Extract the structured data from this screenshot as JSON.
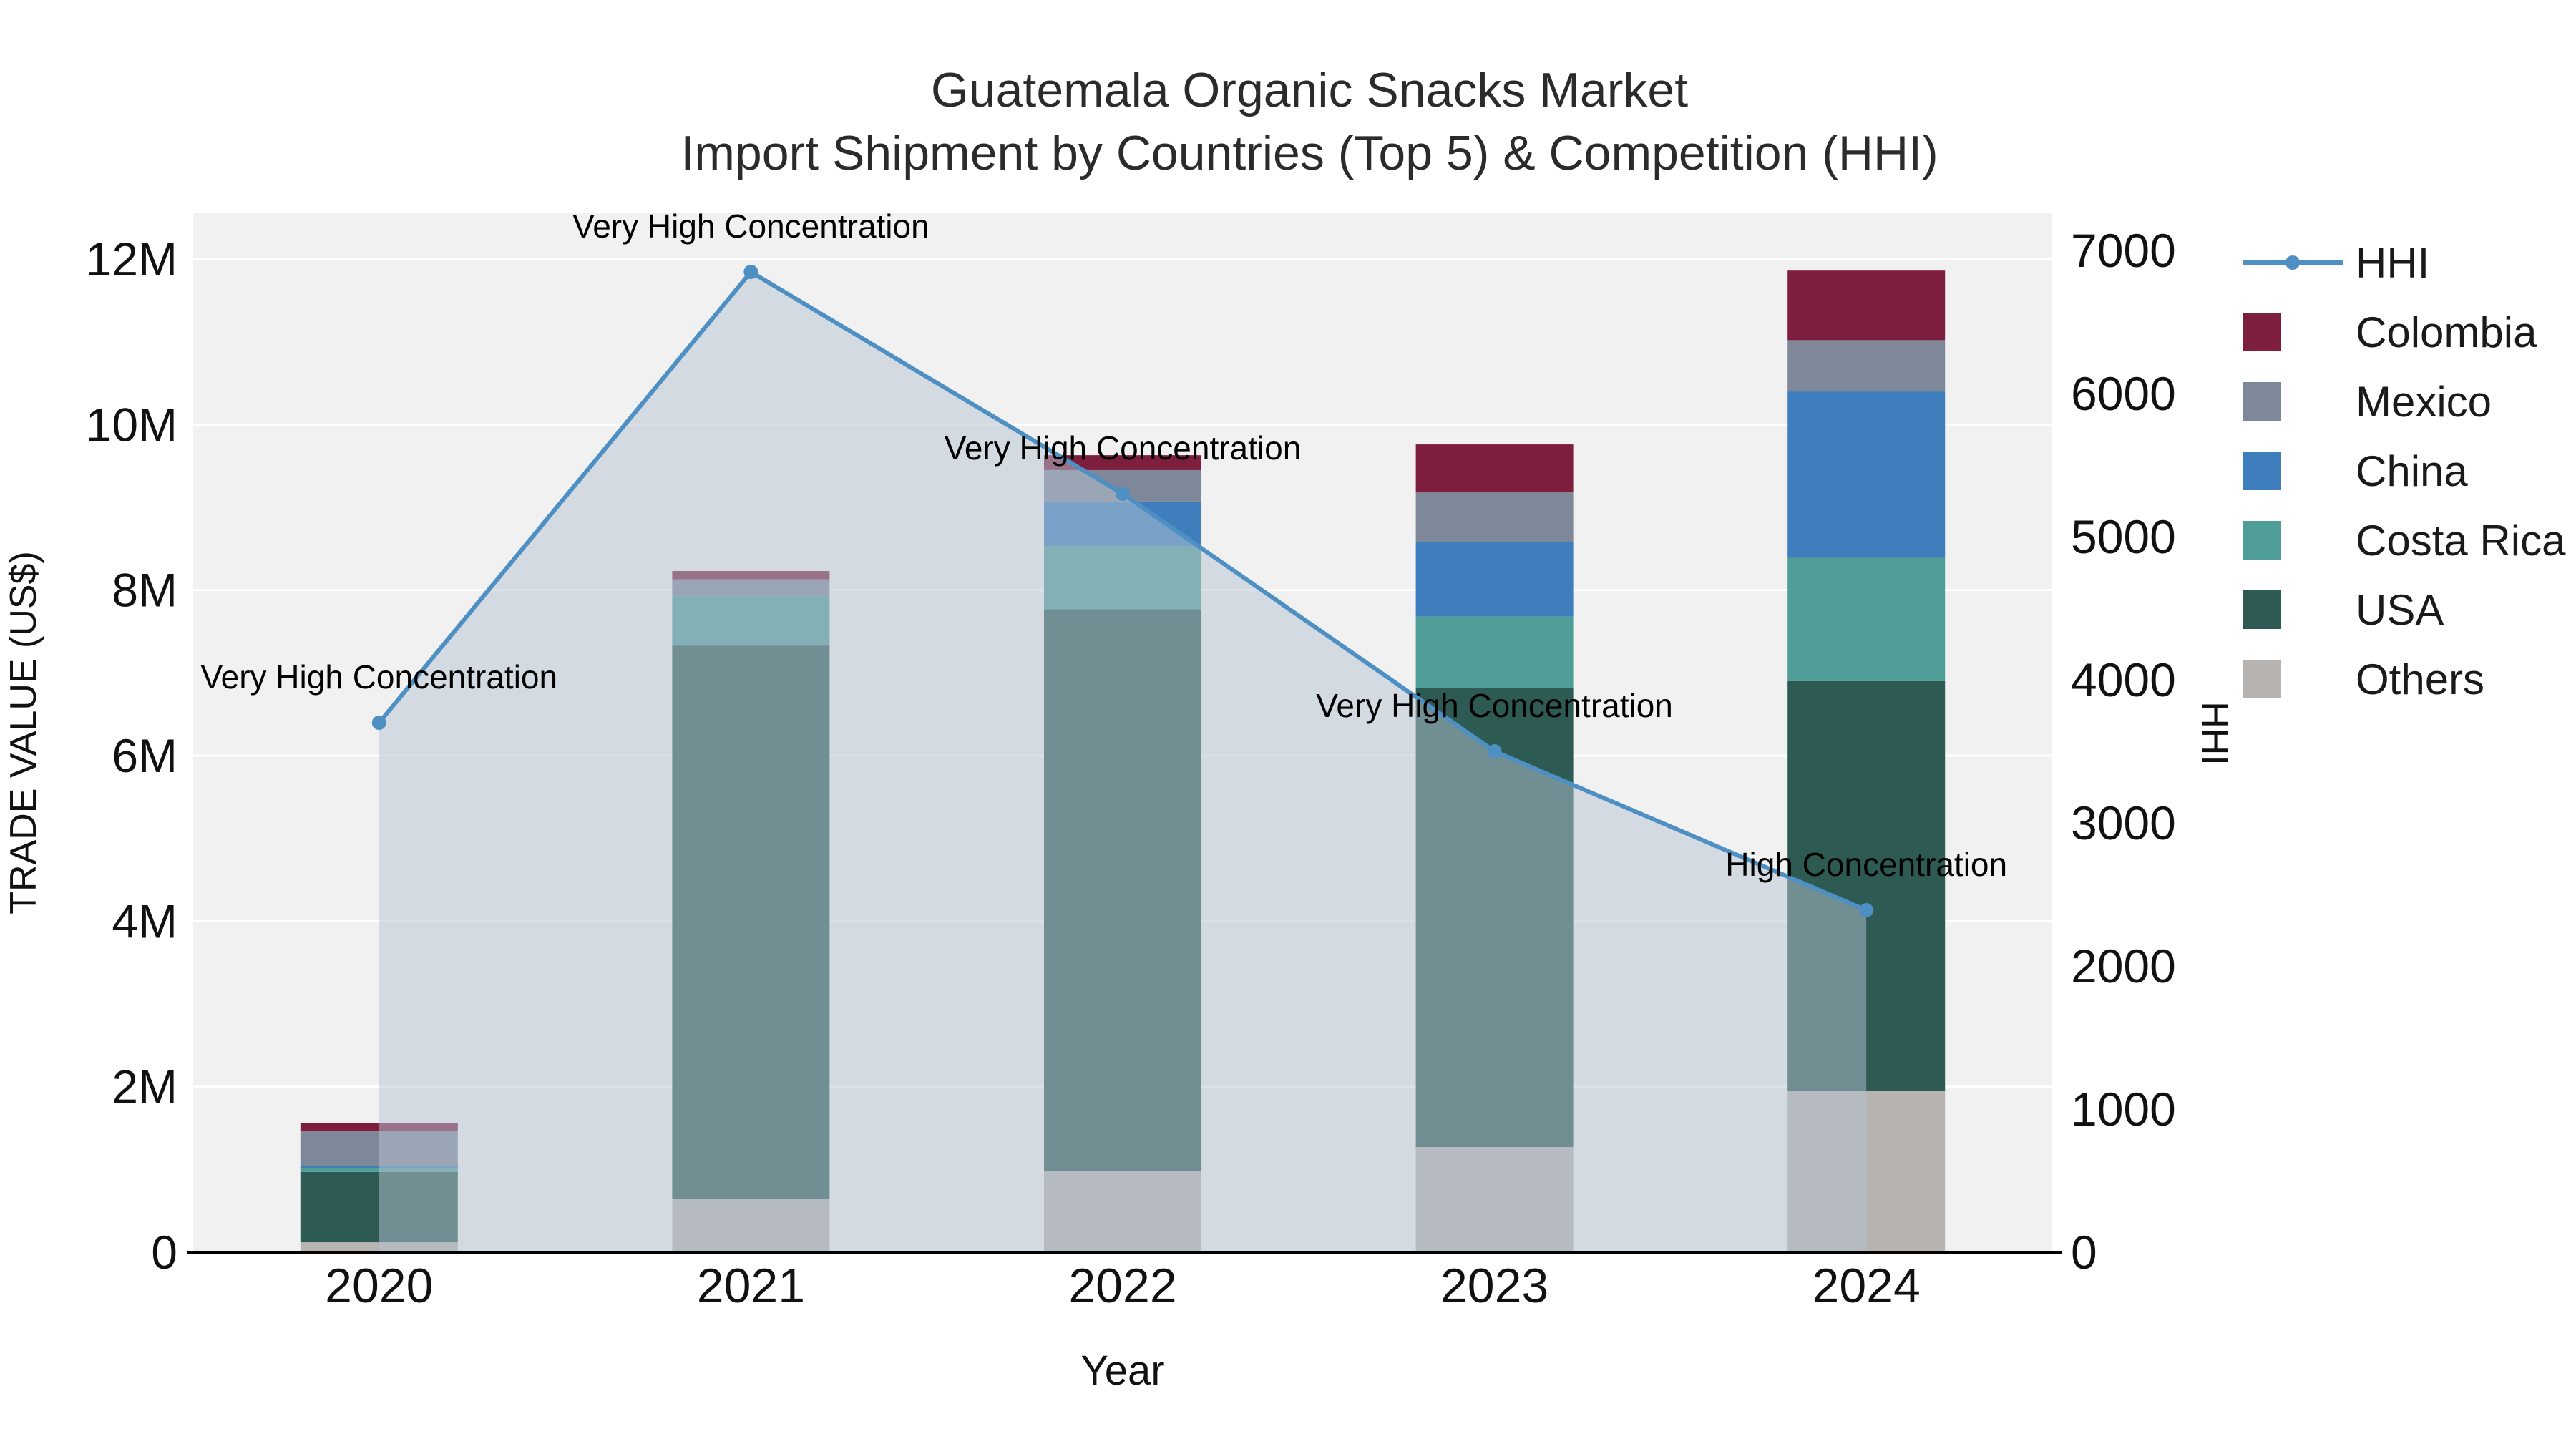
{
  "title": {
    "line1": "Guatemala Organic Snacks Market",
    "line2": "Import Shipment by Countries (Top 5) & Competition (HHI)"
  },
  "axes": {
    "x_title": "Year",
    "y_left_title": "TRADE VALUE (US$)",
    "y_right_title": "HHI",
    "y_left_ticks": [
      {
        "v": 0,
        "label": "0"
      },
      {
        "v": 2000000,
        "label": "2M"
      },
      {
        "v": 4000000,
        "label": "4M"
      },
      {
        "v": 6000000,
        "label": "6M"
      },
      {
        "v": 8000000,
        "label": "8M"
      },
      {
        "v": 10000000,
        "label": "10M"
      },
      {
        "v": 12000000,
        "label": "12M"
      }
    ],
    "y_right_ticks": [
      {
        "v": 0,
        "label": "0"
      },
      {
        "v": 1000,
        "label": "1000"
      },
      {
        "v": 2000,
        "label": "2000"
      },
      {
        "v": 3000,
        "label": "3000"
      },
      {
        "v": 4000,
        "label": "4000"
      },
      {
        "v": 5000,
        "label": "5000"
      },
      {
        "v": 6000,
        "label": "6000"
      },
      {
        "v": 7000,
        "label": "7000"
      }
    ]
  },
  "chart_data": {
    "type": "bar+line",
    "title": "Guatemala Organic Snacks Market — Import Shipment by Countries (Top 5) & Competition (HHI)",
    "categories": [
      "2020",
      "2021",
      "2022",
      "2023",
      "2024"
    ],
    "bar_value_unit": "US$",
    "y_left_range": [
      0,
      12000000
    ],
    "y_right_range": [
      0,
      7000
    ],
    "grid": true,
    "legend_position": "right",
    "stack_order_bottom_to_top": [
      "Others",
      "USA",
      "Costa Rica",
      "China",
      "Mexico",
      "Colombia"
    ],
    "series": [
      {
        "name": "Others",
        "color": "#b7b3b0",
        "values": [
          120000,
          640000,
          980000,
          1270000,
          1950000
        ]
      },
      {
        "name": "USA",
        "color": "#2d5a52",
        "values": [
          850000,
          6690000,
          6790000,
          5550000,
          4950000
        ]
      },
      {
        "name": "Costa Rica",
        "color": "#4f9d97",
        "values": [
          50000,
          600000,
          760000,
          860000,
          1490000
        ]
      },
      {
        "name": "China",
        "color": "#3e7ebd",
        "values": [
          20000,
          0,
          540000,
          900000,
          2010000
        ]
      },
      {
        "name": "Mexico",
        "color": "#7e8898",
        "values": [
          420000,
          200000,
          380000,
          600000,
          620000
        ]
      },
      {
        "name": "Colombia",
        "color": "#7d1e3e",
        "values": [
          100000,
          100000,
          180000,
          580000,
          840000
        ]
      }
    ],
    "line": {
      "name": "HHI",
      "color": "#4e8fc4",
      "area_fill": "rgba(181,195,212,0.5)",
      "values": [
        3700,
        6850,
        5300,
        3500,
        2390
      ]
    },
    "annotations": [
      "Very High Concentration",
      "Very High Concentration",
      "Very High Concentration",
      "Very High Concentration",
      "High Concentration"
    ],
    "plot_background": "#f1f1f1",
    "gridline_color": "#ffffff"
  },
  "legend": {
    "items": [
      {
        "label": "HHI",
        "type": "line",
        "color": "#4e8fc4"
      },
      {
        "label": "Colombia",
        "type": "square",
        "color": "#7d1e3e"
      },
      {
        "label": "Mexico",
        "type": "square",
        "color": "#7e8898"
      },
      {
        "label": "China",
        "type": "square",
        "color": "#3e7ebd"
      },
      {
        "label": "Costa Rica",
        "type": "square",
        "color": "#4f9d97"
      },
      {
        "label": "USA",
        "type": "square",
        "color": "#2d5a52"
      },
      {
        "label": "Others",
        "type": "square",
        "color": "#b7b3b0"
      }
    ]
  }
}
